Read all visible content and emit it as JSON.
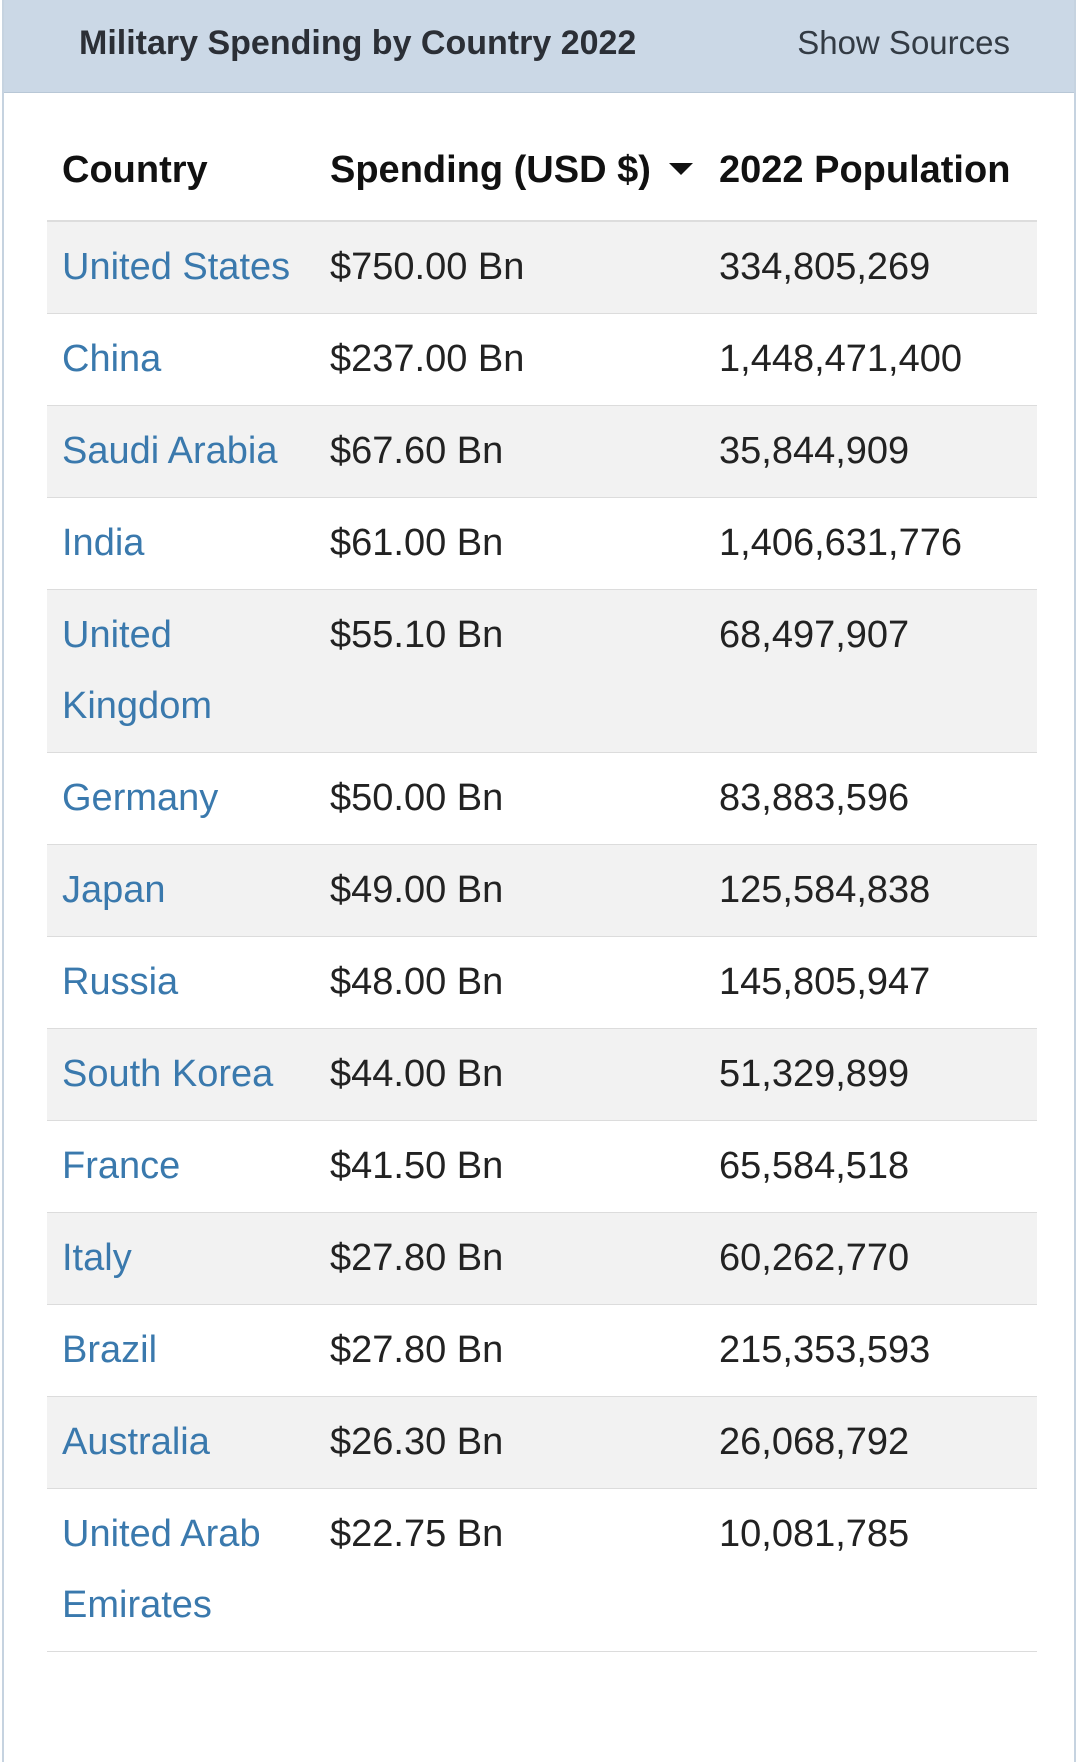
{
  "header": {
    "title": "Military Spending by Country 2022",
    "show_sources_label": "Show Sources"
  },
  "table": {
    "columns": [
      "Country",
      "Spending (USD $)",
      "2022 Population"
    ],
    "sort": {
      "column": "Spending (USD $)",
      "direction": "descending"
    },
    "rows": [
      {
        "country": "United States",
        "spending": "$750.00 Bn",
        "population": "334,805,269"
      },
      {
        "country": "China",
        "spending": "$237.00 Bn",
        "population": "1,448,471,400"
      },
      {
        "country": "Saudi Arabia",
        "spending": "$67.60 Bn",
        "population": "35,844,909"
      },
      {
        "country": "India",
        "spending": "$61.00 Bn",
        "population": "1,406,631,776"
      },
      {
        "country": "United Kingdom",
        "spending": "$55.10 Bn",
        "population": "68,497,907"
      },
      {
        "country": "Germany",
        "spending": "$50.00 Bn",
        "population": "83,883,596"
      },
      {
        "country": "Japan",
        "spending": "$49.00 Bn",
        "population": "125,584,838"
      },
      {
        "country": "Russia",
        "spending": "$48.00 Bn",
        "population": "145,805,947"
      },
      {
        "country": "South Korea",
        "spending": "$44.00 Bn",
        "population": "51,329,899"
      },
      {
        "country": "France",
        "spending": "$41.50 Bn",
        "population": "65,584,518"
      },
      {
        "country": "Italy",
        "spending": "$27.80 Bn",
        "population": "60,262,770"
      },
      {
        "country": "Brazil",
        "spending": "$27.80 Bn",
        "population": "215,353,593"
      },
      {
        "country": "Australia",
        "spending": "$26.30 Bn",
        "population": "26,068,792"
      },
      {
        "country": "United Arab Emirates",
        "spending": "$22.75 Bn",
        "population": "10,081,785"
      }
    ]
  }
}
